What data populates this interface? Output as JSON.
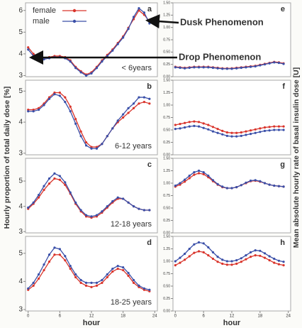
{
  "chart_data": [
    {
      "type": "line",
      "panel_label": "a",
      "subtitle": "< 6years",
      "legend": true,
      "annotations": [
        "Dusk Phenomenon",
        "Drop Phenomenon"
      ],
      "ylabel": "Hourly proportion of total daily dose [%]",
      "x": [
        0,
        1,
        2,
        3,
        4,
        5,
        6,
        7,
        8,
        9,
        10,
        11,
        12,
        13,
        14,
        15,
        16,
        17,
        18,
        19,
        20,
        21,
        22,
        23
      ],
      "xlim": [
        -0.5,
        24.5
      ],
      "ylim": [
        2.95,
        6.35
      ],
      "yticks": [
        3,
        4,
        5,
        6
      ],
      "series": [
        {
          "name": "female",
          "color": "#d9342b",
          "values": [
            4.3,
            4.0,
            3.85,
            3.8,
            3.85,
            3.9,
            3.9,
            3.85,
            3.7,
            3.4,
            3.2,
            3.05,
            3.15,
            3.4,
            3.7,
            3.95,
            4.2,
            4.5,
            4.8,
            5.2,
            5.6,
            6.0,
            5.8,
            5.5
          ]
        },
        {
          "name": "male",
          "color": "#3a4fa8",
          "values": [
            4.2,
            3.9,
            3.75,
            3.75,
            3.8,
            3.85,
            3.85,
            3.8,
            3.65,
            3.35,
            3.15,
            3.0,
            3.1,
            3.35,
            3.65,
            3.9,
            4.15,
            4.45,
            4.75,
            5.15,
            5.7,
            6.1,
            5.9,
            5.4
          ]
        }
      ]
    },
    {
      "type": "line",
      "panel_label": "b",
      "subtitle": "6-12 years",
      "x": [
        0,
        1,
        2,
        3,
        4,
        5,
        6,
        7,
        8,
        9,
        10,
        11,
        12,
        13,
        14,
        15,
        16,
        17,
        18,
        19,
        20,
        21,
        22,
        23
      ],
      "xlim": [
        -0.5,
        24.5
      ],
      "ylim": [
        2.95,
        5.35
      ],
      "yticks": [
        3,
        4,
        5
      ],
      "series": [
        {
          "name": "female",
          "color": "#d9342b",
          "values": [
            4.4,
            4.4,
            4.45,
            4.6,
            4.8,
            4.95,
            4.95,
            4.8,
            4.5,
            4.1,
            3.7,
            3.35,
            3.2,
            3.2,
            3.3,
            3.55,
            3.8,
            4.0,
            4.15,
            4.3,
            4.45,
            4.6,
            4.65,
            4.6
          ]
        },
        {
          "name": "male",
          "color": "#3a4fa8",
          "values": [
            4.35,
            4.35,
            4.4,
            4.55,
            4.75,
            4.9,
            4.85,
            4.65,
            4.35,
            3.95,
            3.55,
            3.25,
            3.15,
            3.15,
            3.3,
            3.55,
            3.8,
            4.05,
            4.25,
            4.45,
            4.6,
            4.8,
            4.8,
            4.75
          ]
        }
      ]
    },
    {
      "type": "line",
      "panel_label": "c",
      "subtitle": "12-18 years",
      "x": [
        0,
        1,
        2,
        3,
        4,
        5,
        6,
        7,
        8,
        9,
        10,
        11,
        12,
        13,
        14,
        15,
        16,
        17,
        18,
        19,
        20,
        21,
        22,
        23
      ],
      "xlim": [
        -0.5,
        24.5
      ],
      "ylim": [
        2.95,
        5.9
      ],
      "yticks": [
        3,
        4,
        5
      ],
      "series": [
        {
          "name": "female",
          "color": "#d9342b",
          "values": [
            3.9,
            4.1,
            4.35,
            4.65,
            4.9,
            5.1,
            5.05,
            4.85,
            4.5,
            4.1,
            3.8,
            3.6,
            3.55,
            3.6,
            3.75,
            3.95,
            4.15,
            4.3,
            4.3,
            4.15,
            4.0,
            3.9,
            3.85,
            3.85
          ]
        },
        {
          "name": "male",
          "color": "#3a4fa8",
          "values": [
            3.95,
            4.15,
            4.45,
            4.8,
            5.1,
            5.3,
            5.2,
            4.95,
            4.55,
            4.15,
            3.85,
            3.65,
            3.6,
            3.65,
            3.8,
            4.0,
            4.2,
            4.35,
            4.3,
            4.15,
            4.0,
            3.9,
            3.85,
            3.85
          ]
        }
      ]
    },
    {
      "type": "line",
      "panel_label": "d",
      "subtitle": "18-25 years",
      "xlabel": "hour",
      "x": [
        0,
        1,
        2,
        3,
        4,
        5,
        6,
        7,
        8,
        9,
        10,
        11,
        12,
        13,
        14,
        15,
        16,
        17,
        18,
        19,
        20,
        21,
        22,
        23
      ],
      "xlim": [
        -0.5,
        24.5
      ],
      "xticks": [
        0,
        6,
        12,
        18,
        24
      ],
      "ylim": [
        2.95,
        5.6
      ],
      "yticks": [
        3,
        4,
        5
      ],
      "series": [
        {
          "name": "female",
          "color": "#d9342b",
          "values": [
            3.7,
            3.85,
            4.1,
            4.4,
            4.7,
            4.95,
            4.95,
            4.75,
            4.45,
            4.15,
            3.95,
            3.85,
            3.8,
            3.85,
            3.95,
            4.15,
            4.35,
            4.45,
            4.4,
            4.2,
            3.95,
            3.8,
            3.7,
            3.65
          ]
        },
        {
          "name": "male",
          "color": "#3a4fa8",
          "values": [
            3.75,
            3.95,
            4.25,
            4.6,
            4.95,
            5.2,
            5.15,
            4.9,
            4.55,
            4.25,
            4.05,
            3.95,
            3.95,
            3.95,
            4.05,
            4.25,
            4.45,
            4.55,
            4.5,
            4.3,
            4.05,
            3.85,
            3.75,
            3.7
          ]
        }
      ]
    },
    {
      "type": "line",
      "panel_label": "e",
      "ylabel": "Mean absolute hourly rate of basal insulin dose [U]",
      "x": [
        0,
        1,
        2,
        3,
        4,
        5,
        6,
        7,
        8,
        9,
        10,
        11,
        12,
        13,
        14,
        15,
        16,
        17,
        18,
        19,
        20,
        21,
        22,
        23
      ],
      "xlim": [
        -0.5,
        24.5
      ],
      "ylim": [
        0,
        1.5
      ],
      "yticks": [
        {
          "value": 0,
          "label": "0.00"
        },
        {
          "value": 0.25,
          "label": "0.25"
        },
        {
          "value": 0.5,
          "label": "0.50"
        },
        {
          "value": 0.75,
          "label": "0.75"
        },
        {
          "value": 1,
          "label": "1.00"
        },
        {
          "value": 1.25,
          "label": "1.25"
        },
        {
          "value": 1.5,
          "label": "1.50"
        }
      ],
      "series": [
        {
          "name": "female",
          "color": "#d9342b",
          "values": [
            0.2,
            0.19,
            0.18,
            0.19,
            0.2,
            0.2,
            0.2,
            0.2,
            0.19,
            0.18,
            0.17,
            0.17,
            0.17,
            0.18,
            0.19,
            0.2,
            0.21,
            0.22,
            0.24,
            0.26,
            0.28,
            0.3,
            0.29,
            0.27
          ]
        },
        {
          "name": "male",
          "color": "#3a4fa8",
          "values": [
            0.19,
            0.18,
            0.17,
            0.18,
            0.19,
            0.19,
            0.19,
            0.19,
            0.18,
            0.17,
            0.16,
            0.16,
            0.16,
            0.17,
            0.18,
            0.19,
            0.2,
            0.21,
            0.23,
            0.25,
            0.27,
            0.29,
            0.28,
            0.26
          ]
        }
      ]
    },
    {
      "type": "line",
      "panel_label": "f",
      "x": [
        0,
        1,
        2,
        3,
        4,
        5,
        6,
        7,
        8,
        9,
        10,
        11,
        12,
        13,
        14,
        15,
        16,
        17,
        18,
        19,
        20,
        21,
        22,
        23
      ],
      "xlim": [
        -0.5,
        24.5
      ],
      "ylim": [
        0,
        1.5
      ],
      "yticks": [
        {
          "value": 0,
          "label": "0.00"
        },
        {
          "value": 0.25,
          "label": "0.25"
        },
        {
          "value": 0.5,
          "label": "0.50"
        },
        {
          "value": 0.75,
          "label": "0.75"
        },
        {
          "value": 1,
          "label": "1.00"
        },
        {
          "value": 1.25,
          "label": "1.25"
        },
        {
          "value": 1.5,
          "label": "1.50"
        }
      ],
      "series": [
        {
          "name": "female",
          "color": "#d9342b",
          "values": [
            0.6,
            0.62,
            0.64,
            0.66,
            0.67,
            0.66,
            0.63,
            0.6,
            0.56,
            0.52,
            0.48,
            0.45,
            0.44,
            0.44,
            0.45,
            0.47,
            0.49,
            0.51,
            0.53,
            0.55,
            0.56,
            0.57,
            0.57,
            0.57
          ]
        },
        {
          "name": "male",
          "color": "#3a4fa8",
          "values": [
            0.52,
            0.53,
            0.55,
            0.57,
            0.58,
            0.57,
            0.54,
            0.51,
            0.47,
            0.44,
            0.41,
            0.38,
            0.37,
            0.37,
            0.38,
            0.4,
            0.42,
            0.44,
            0.46,
            0.48,
            0.49,
            0.5,
            0.5,
            0.5
          ]
        }
      ]
    },
    {
      "type": "line",
      "panel_label": "g",
      "x": [
        0,
        1,
        2,
        3,
        4,
        5,
        6,
        7,
        8,
        9,
        10,
        11,
        12,
        13,
        14,
        15,
        16,
        17,
        18,
        19,
        20,
        21,
        22,
        23
      ],
      "xlim": [
        -0.5,
        24.5
      ],
      "ylim": [
        0,
        1.5
      ],
      "yticks": [
        {
          "value": 0,
          "label": "0.00"
        },
        {
          "value": 0.25,
          "label": "0.25"
        },
        {
          "value": 0.5,
          "label": "0.50"
        },
        {
          "value": 0.75,
          "label": "0.75"
        },
        {
          "value": 1,
          "label": "1.00"
        },
        {
          "value": 1.25,
          "label": "1.25"
        },
        {
          "value": 1.5,
          "label": "1.50"
        }
      ],
      "series": [
        {
          "name": "female",
          "color": "#d9342b",
          "values": [
            0.93,
            0.97,
            1.03,
            1.1,
            1.17,
            1.2,
            1.18,
            1.12,
            1.04,
            0.97,
            0.92,
            0.9,
            0.9,
            0.92,
            0.96,
            1.0,
            1.04,
            1.05,
            1.03,
            1.0,
            0.97,
            0.95,
            0.94,
            0.93
          ]
        },
        {
          "name": "male",
          "color": "#3a4fa8",
          "values": [
            0.95,
            1.0,
            1.07,
            1.15,
            1.22,
            1.25,
            1.22,
            1.15,
            1.06,
            0.98,
            0.93,
            0.9,
            0.9,
            0.92,
            0.96,
            1.01,
            1.05,
            1.06,
            1.04,
            1.0,
            0.97,
            0.95,
            0.94,
            0.93
          ]
        }
      ]
    },
    {
      "type": "line",
      "panel_label": "h",
      "xlabel": "hour",
      "x": [
        0,
        1,
        2,
        3,
        4,
        5,
        6,
        7,
        8,
        9,
        10,
        11,
        12,
        13,
        14,
        15,
        16,
        17,
        18,
        19,
        20,
        21,
        22,
        23
      ],
      "xlim": [
        -0.5,
        24.5
      ],
      "xticks": [
        0,
        6,
        12,
        18,
        24
      ],
      "ylim": [
        0,
        1.5
      ],
      "yticks": [
        {
          "value": 0,
          "label": "0.00"
        },
        {
          "value": 0.25,
          "label": "0.25"
        },
        {
          "value": 0.5,
          "label": "0.50"
        },
        {
          "value": 0.75,
          "label": "0.75"
        },
        {
          "value": 1,
          "label": "1.00"
        },
        {
          "value": 1.25,
          "label": "1.25"
        },
        {
          "value": 1.5,
          "label": "1.50"
        }
      ],
      "series": [
        {
          "name": "female",
          "color": "#d9342b",
          "values": [
            0.92,
            0.97,
            1.03,
            1.1,
            1.17,
            1.2,
            1.18,
            1.12,
            1.05,
            0.99,
            0.95,
            0.93,
            0.93,
            0.95,
            0.99,
            1.04,
            1.09,
            1.12,
            1.11,
            1.07,
            1.02,
            0.97,
            0.94,
            0.92
          ]
        },
        {
          "name": "male",
          "color": "#3a4fa8",
          "values": [
            1.0,
            1.07,
            1.15,
            1.25,
            1.34,
            1.38,
            1.36,
            1.28,
            1.18,
            1.09,
            1.03,
            1.0,
            1.0,
            1.02,
            1.06,
            1.12,
            1.18,
            1.22,
            1.21,
            1.16,
            1.1,
            1.05,
            1.01,
            0.99
          ]
        }
      ]
    }
  ]
}
